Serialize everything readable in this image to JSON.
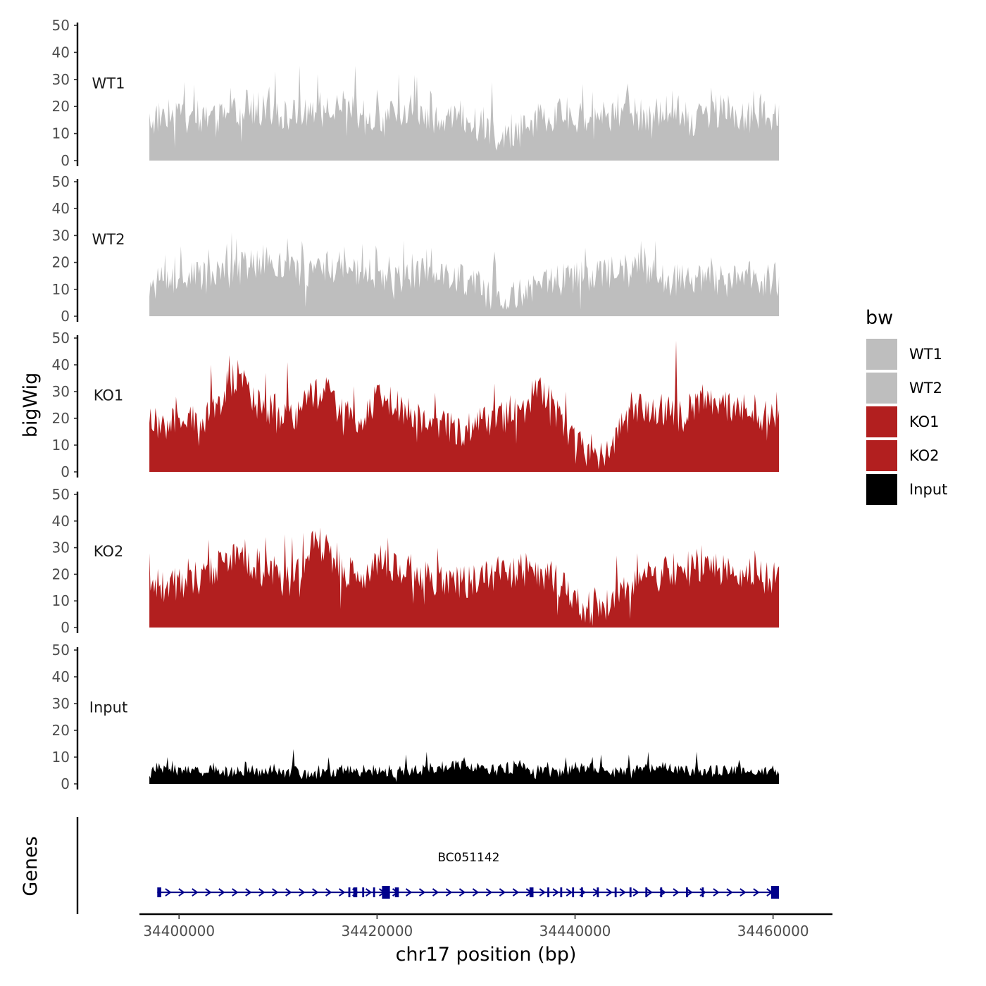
{
  "chart_data": {
    "type": "area",
    "ylabel": "bigWig",
    "genes_label": "Genes",
    "xlabel": "chr17 position (bp)",
    "x_ticks": [
      34400000,
      34420000,
      34440000,
      34460000
    ],
    "x_tick_labels": [
      "34400000",
      "34420000",
      "34440000",
      "34460000"
    ],
    "xlim": [
      34396000,
      34466000
    ],
    "data_xrange": [
      34397000,
      34460600
    ],
    "ylim": [
      0,
      50
    ],
    "y_ticks": [
      0,
      10,
      20,
      30,
      40,
      50
    ],
    "y_tick_labels": [
      "0",
      "10",
      "20",
      "30",
      "40",
      "50"
    ],
    "legend": {
      "title": "bw",
      "entries": [
        {
          "label": "WT1",
          "color": "#bebebe"
        },
        {
          "label": "WT2",
          "color": "#bebebe"
        },
        {
          "label": "KO1",
          "color": "#b21f1f"
        },
        {
          "label": "KO2",
          "color": "#b21f1f"
        },
        {
          "label": "Input",
          "color": "#000000"
        }
      ]
    },
    "series": [
      {
        "name": "WT1",
        "color": "#bebebe",
        "base_profile": [
          14,
          17,
          19,
          16,
          14,
          16,
          20,
          18,
          17,
          16,
          18,
          20,
          19,
          17,
          16,
          16,
          18,
          17,
          15,
          16,
          14,
          10,
          9,
          12,
          14,
          16,
          17,
          15,
          16,
          18,
          17,
          16,
          17,
          15,
          14,
          18,
          17,
          16,
          18,
          16
        ],
        "spikes": [
          [
            34400500,
            29
          ],
          [
            34401500,
            28
          ],
          [
            34405200,
            27
          ],
          [
            34409700,
            33
          ],
          [
            34412200,
            35
          ],
          [
            34414000,
            32
          ],
          [
            34417800,
            35
          ],
          [
            34422200,
            32
          ],
          [
            34424000,
            31
          ],
          [
            34431600,
            29
          ],
          [
            34436700,
            15
          ],
          [
            34441000,
            16
          ],
          [
            34449800,
            26
          ],
          [
            34453800,
            27
          ],
          [
            34458000,
            26
          ]
        ]
      },
      {
        "name": "WT2",
        "color": "#bebebe",
        "base_profile": [
          12,
          11,
          13,
          14,
          13,
          16,
          18,
          20,
          17,
          15,
          16,
          18,
          17,
          16,
          15,
          13,
          14,
          15,
          13,
          14,
          12,
          8,
          6,
          8,
          10,
          12,
          14,
          14,
          15,
          17,
          16,
          14,
          13,
          14,
          13,
          12,
          13,
          14,
          13,
          13
        ],
        "spikes": [
          [
            34400200,
            26
          ],
          [
            34404800,
            27
          ],
          [
            34405800,
            29
          ],
          [
            34411000,
            29
          ],
          [
            34412400,
            28
          ],
          [
            34416700,
            26
          ],
          [
            34418500,
            27
          ],
          [
            34425000,
            25
          ],
          [
            34431800,
            24
          ],
          [
            34438000,
            15
          ],
          [
            34446600,
            28
          ],
          [
            34448100,
            28
          ],
          [
            34453800,
            22
          ],
          [
            34457500,
            20
          ]
        ]
      },
      {
        "name": "KO1",
        "color": "#b21f1f",
        "base_profile": [
          18,
          16,
          17,
          18,
          20,
          34,
          31,
          22,
          19,
          18,
          28,
          30,
          21,
          20,
          26,
          25,
          22,
          20,
          18,
          15,
          16,
          18,
          20,
          22,
          30,
          25,
          12,
          8,
          6,
          14,
          22,
          24,
          22,
          20,
          26,
          25,
          24,
          23,
          21,
          22
        ],
        "spikes": [
          [
            34399300,
            24
          ],
          [
            34403200,
            40
          ],
          [
            34404800,
            38
          ],
          [
            34408800,
            37
          ],
          [
            34410900,
            41
          ],
          [
            34415500,
            30
          ],
          [
            34417700,
            32
          ],
          [
            34419900,
            29
          ],
          [
            34431900,
            33
          ],
          [
            34439100,
            30
          ],
          [
            34445700,
            30
          ],
          [
            34450200,
            49
          ],
          [
            34452800,
            29
          ],
          [
            34458100,
            29
          ],
          [
            34460400,
            30
          ]
        ]
      },
      {
        "name": "KO2",
        "color": "#b21f1f",
        "base_profile": [
          17,
          15,
          16,
          18,
          20,
          27,
          26,
          20,
          18,
          17,
          30,
          28,
          20,
          19,
          22,
          23,
          21,
          19,
          17,
          16,
          17,
          18,
          19,
          21,
          20,
          18,
          12,
          7,
          5,
          12,
          16,
          18,
          20,
          22,
          23,
          22,
          21,
          20,
          19,
          18
        ],
        "spikes": [
          [
            34400900,
            26
          ],
          [
            34403000,
            33
          ],
          [
            34405400,
            31
          ],
          [
            34408700,
            34
          ],
          [
            34410700,
            35
          ],
          [
            34411400,
            34
          ],
          [
            34415900,
            32
          ],
          [
            34420300,
            31
          ],
          [
            34421900,
            27
          ],
          [
            34431000,
            25
          ],
          [
            34444200,
            27
          ],
          [
            34446300,
            28
          ],
          [
            34452800,
            31
          ],
          [
            34458100,
            29
          ]
        ]
      },
      {
        "name": "Input",
        "color": "#000000",
        "base_profile": [
          4,
          5,
          5,
          4,
          5,
          4,
          5,
          4,
          4,
          4,
          3,
          4,
          5,
          4,
          5,
          4,
          5,
          5,
          6,
          7,
          6,
          5,
          5,
          6,
          5,
          4,
          5,
          6,
          5,
          4,
          5,
          6,
          6,
          5,
          4,
          5,
          5,
          5,
          4,
          5
        ],
        "spikes": [
          [
            34397700,
            8
          ],
          [
            34398800,
            10
          ],
          [
            34403500,
            8
          ],
          [
            34406800,
            8
          ],
          [
            34411600,
            13
          ],
          [
            34415100,
            10
          ],
          [
            34422900,
            11
          ],
          [
            34425000,
            12
          ],
          [
            34428800,
            10
          ],
          [
            34434400,
            9
          ],
          [
            34439100,
            10
          ],
          [
            34442600,
            11
          ],
          [
            34445400,
            11
          ],
          [
            34447400,
            12
          ],
          [
            34452300,
            12
          ],
          [
            34456600,
            9
          ]
        ]
      }
    ],
    "gene": {
      "name": "BC051142",
      "color": "#00008b",
      "strand": "+",
      "start": 34398200,
      "end": 34460300,
      "exons": [
        [
          34397800,
          34398200
        ],
        [
          34417100,
          34417300
        ],
        [
          34417600,
          34418000
        ],
        [
          34418500,
          34418700
        ],
        [
          34419600,
          34419800
        ],
        [
          34420500,
          34421300
        ],
        [
          34421800,
          34422200
        ],
        [
          34435400,
          34435800
        ],
        [
          34437200,
          34437400
        ],
        [
          34438500,
          34438700
        ],
        [
          34439700,
          34439900
        ],
        [
          34440600,
          34440800
        ],
        [
          34442200,
          34442400
        ],
        [
          34444000,
          34444200
        ],
        [
          34445500,
          34445700
        ],
        [
          34447100,
          34447300
        ],
        [
          34448600,
          34448800
        ],
        [
          34451200,
          34451400
        ],
        [
          34452800,
          34453000
        ],
        [
          34459800,
          34460600
        ]
      ]
    }
  }
}
